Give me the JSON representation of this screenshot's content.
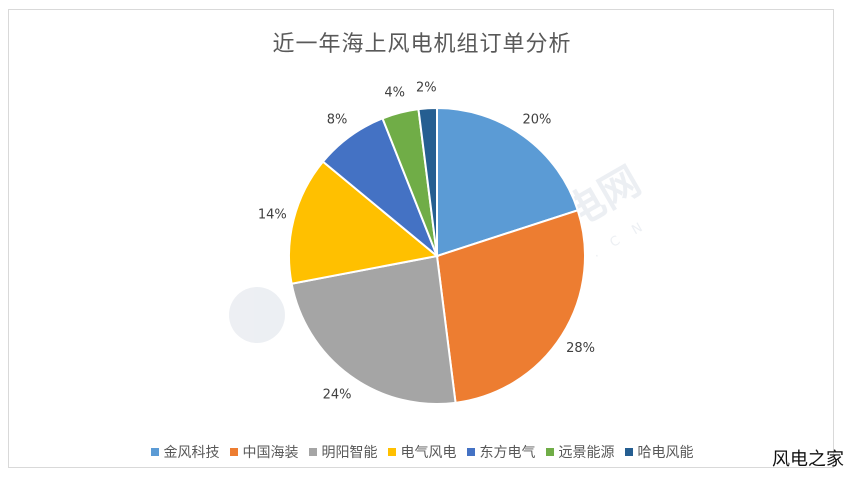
{
  "chart_data": {
    "type": "pie",
    "title": "近一年海上风电机组订单分析",
    "categories": [
      "金风科技",
      "中国海装",
      "明阳智能",
      "电气风电",
      "东方电气",
      "远景能源",
      "哈电风能"
    ],
    "values": [
      20,
      28,
      24,
      14,
      8,
      4,
      2
    ],
    "value_labels": [
      "20%",
      "28%",
      "24%",
      "14%",
      "8%",
      "4%",
      "2%"
    ],
    "colors": [
      "#5b9bd5",
      "#ed7d31",
      "#a5a5a5",
      "#ffc000",
      "#4472c4",
      "#70ad47",
      "#255e91"
    ],
    "legend_position": "bottom"
  },
  "watermark": {
    "site_logo_text": "北极星风力发电网",
    "site_logo_url_text": "F D . B J X . C O M . C N",
    "corner_text": "风电之家"
  }
}
